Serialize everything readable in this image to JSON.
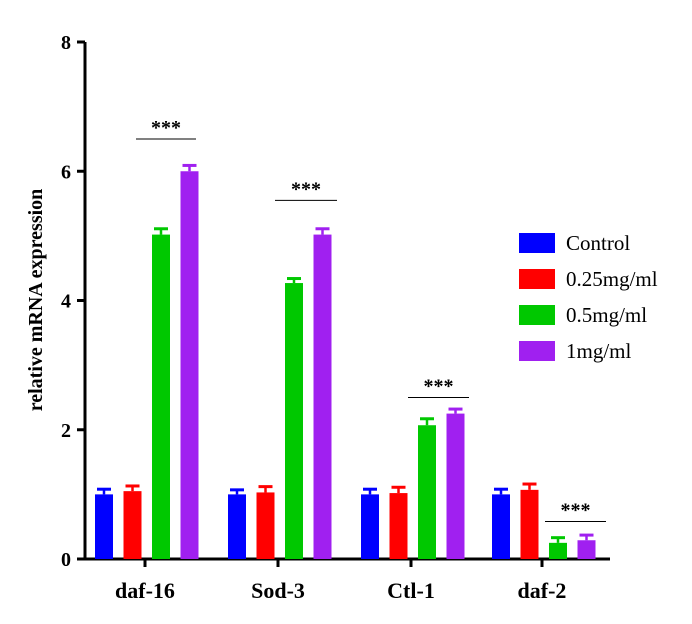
{
  "chart_data": {
    "type": "bar",
    "ylabel": "relative mRNA expression",
    "xlabel": "",
    "ylim": [
      0,
      8
    ],
    "yticks": [
      "0",
      "2",
      "4",
      "6",
      "8"
    ],
    "categories": [
      "daf-16",
      "Sod-3",
      "Ctl-1",
      "daf-2"
    ],
    "series": [
      {
        "name": "Control",
        "color": "#0000ff",
        "values": [
          1.0,
          1.0,
          1.0,
          1.0
        ],
        "errors": [
          0.08,
          0.07,
          0.08,
          0.08
        ]
      },
      {
        "name": "0.25mg/ml",
        "color": "#ff0000",
        "values": [
          1.05,
          1.03,
          1.02,
          1.07
        ],
        "errors": [
          0.08,
          0.09,
          0.09,
          0.09
        ]
      },
      {
        "name": "0.5mg/ml",
        "color": "#00c800",
        "values": [
          5.02,
          4.27,
          2.07,
          0.25
        ],
        "errors": [
          0.09,
          0.07,
          0.1,
          0.08
        ]
      },
      {
        "name": "1mg/ml",
        "color": "#a020f0",
        "values": [
          6.0,
          5.02,
          2.25,
          0.29
        ],
        "errors": [
          0.09,
          0.09,
          0.07,
          0.08
        ]
      }
    ],
    "significance": [
      {
        "category": "daf-16",
        "label": "***",
        "level": 6.5
      },
      {
        "category": "Sod-3",
        "label": "***",
        "level": 5.55
      },
      {
        "category": "Ctl-1",
        "label": "***",
        "level": 2.5
      },
      {
        "category": "daf-2",
        "label": "***",
        "level": 0.58
      }
    ],
    "legend_position": "right"
  }
}
